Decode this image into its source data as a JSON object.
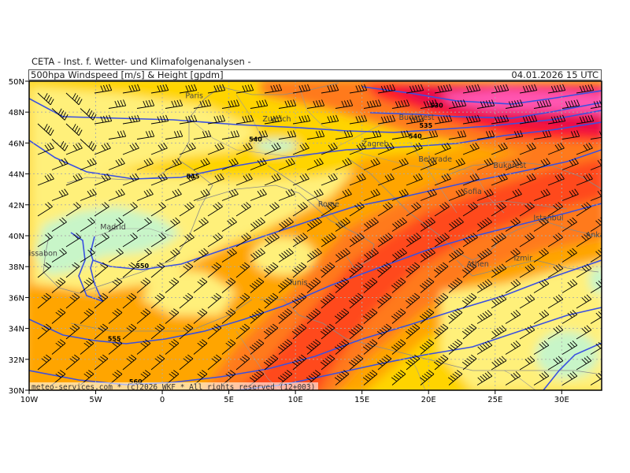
{
  "header": {
    "institute": "CETA - Inst. f. Wetter- und Klimafolgenanalysen -",
    "parameter": "500hpa Windspeed [m/s] & Height [gpdm]",
    "valid_time": "04.01.2026 15 UTC"
  },
  "map": {
    "lon_range": [
      -10,
      33
    ],
    "lat_range": [
      30,
      50
    ],
    "lon_ticks": [
      {
        "value": -10,
        "label": "10W"
      },
      {
        "value": -5,
        "label": "5W"
      },
      {
        "value": 0,
        "label": "0"
      },
      {
        "value": 5,
        "label": "5E"
      },
      {
        "value": 10,
        "label": "10E"
      },
      {
        "value": 15,
        "label": "15E"
      },
      {
        "value": 20,
        "label": "20E"
      },
      {
        "value": 25,
        "label": "25E"
      },
      {
        "value": 30,
        "label": "30E"
      }
    ],
    "lat_ticks": [
      {
        "value": 50,
        "label": "50N"
      },
      {
        "value": 48,
        "label": "48N"
      },
      {
        "value": 46,
        "label": "46N"
      },
      {
        "value": 44,
        "label": "44N"
      },
      {
        "value": 42,
        "label": "42N"
      },
      {
        "value": 40,
        "label": "40N"
      },
      {
        "value": 38,
        "label": "38N"
      },
      {
        "value": 36,
        "label": "36N"
      },
      {
        "value": 34,
        "label": "34N"
      },
      {
        "value": 32,
        "label": "32N"
      }
    ],
    "bottom_lat_label": "30N",
    "cities": [
      {
        "name": "Paris",
        "lon": 2.4,
        "lat": 48.9
      },
      {
        "name": "Zuerich",
        "lon": 8.6,
        "lat": 47.4
      },
      {
        "name": "Budapest",
        "lon": 19.1,
        "lat": 47.5
      },
      {
        "name": "Zagreb",
        "lon": 16.0,
        "lat": 45.8
      },
      {
        "name": "Belgrade",
        "lon": 20.5,
        "lat": 44.8
      },
      {
        "name": "Bukarest",
        "lon": 26.1,
        "lat": 44.4
      },
      {
        "name": "Sofia",
        "lon": 23.3,
        "lat": 42.7
      },
      {
        "name": "Rome",
        "lon": 12.5,
        "lat": 41.9
      },
      {
        "name": "Istanbul",
        "lon": 29.0,
        "lat": 41.0
      },
      {
        "name": "Ankara",
        "lon": 32.8,
        "lat": 39.9
      },
      {
        "name": "Madrid",
        "lon": -3.7,
        "lat": 40.4
      },
      {
        "name": "Lissabon",
        "lon": -9.1,
        "lat": 38.7
      },
      {
        "name": "Athen",
        "lon": 23.7,
        "lat": 38.0
      },
      {
        "name": "Izmir",
        "lon": 27.1,
        "lat": 38.4
      },
      {
        "name": "Tunis",
        "lon": 10.2,
        "lat": 36.8
      }
    ],
    "contour_labels": [
      {
        "text": "530",
        "lon": 20.6,
        "lat": 48.3
      },
      {
        "text": "535",
        "lon": 19.8,
        "lat": 47.0
      },
      {
        "text": "540",
        "lon": 19.0,
        "lat": 46.3
      },
      {
        "text": "540",
        "lon": 7.0,
        "lat": 46.1
      },
      {
        "text": "545",
        "lon": 2.3,
        "lat": 43.7
      },
      {
        "text": "550",
        "lon": -1.5,
        "lat": 37.9
      },
      {
        "text": "555",
        "lon": -3.6,
        "lat": 33.2
      },
      {
        "text": "560",
        "lon": -2.0,
        "lat": 30.4
      }
    ],
    "copyright": "meteo-services.com * (c)2026 WKF * All rights reserved (12+003)",
    "colors": {
      "light_green": "#c8f5c8",
      "pale_yellow": "#fff07a",
      "yellow": "#ffd400",
      "orange_light": "#ffa500",
      "orange": "#ff7a1a",
      "red_orange": "#ff4a1a",
      "red": "#ff1e2a",
      "crimson": "#e8104a",
      "magenta": "#ff55b0",
      "contour": "#3a50e0",
      "coast": "#8a8a8a",
      "wind_barb": "#000000"
    }
  }
}
